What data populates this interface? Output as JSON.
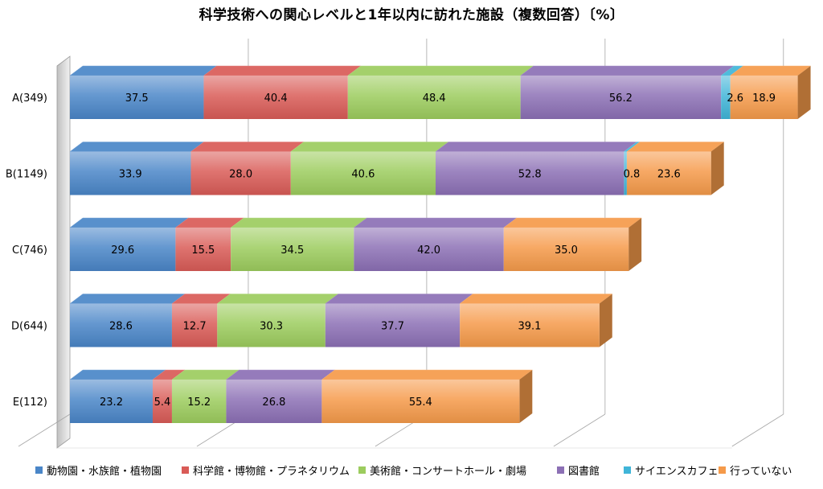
{
  "chart_data": {
    "type": "bar",
    "orientation": "horizontal",
    "stacked": true,
    "three_d": true,
    "title": "科学技術への関心レベルと1年以内に訪れた施設（複数回答）〔%〕",
    "categories": [
      "A(349)",
      "B(1149)",
      "C(746)",
      "D(644)",
      "E(112)"
    ],
    "series": [
      {
        "name": "動物園・水族館・植物園",
        "color": "#4a86c8",
        "values": [
          37.5,
          33.9,
          29.6,
          28.6,
          23.2
        ]
      },
      {
        "name": "科学館・博物館・プラネタリウム",
        "color": "#d95b57",
        "values": [
          40.4,
          28.0,
          15.5,
          12.7,
          5.4
        ]
      },
      {
        "name": "美術館・コンサートホール・劇場",
        "color": "#9ccc5e",
        "values": [
          48.4,
          40.6,
          34.5,
          30.3,
          15.2
        ]
      },
      {
        "name": "図書館",
        "color": "#8c70b5",
        "values": [
          56.2,
          52.8,
          42.0,
          37.7,
          26.8
        ]
      },
      {
        "name": "サイエンスカフェ",
        "color": "#40b5d8",
        "values": [
          2.6,
          0.8,
          null,
          null,
          null
        ]
      },
      {
        "name": "行っていない",
        "color": "#f59a4a",
        "values": [
          18.9,
          23.6,
          35.0,
          39.1,
          55.4
        ]
      }
    ],
    "data_labels": true,
    "legend_position": "bottom",
    "grid": true,
    "xlim": [
      0,
      200
    ]
  }
}
